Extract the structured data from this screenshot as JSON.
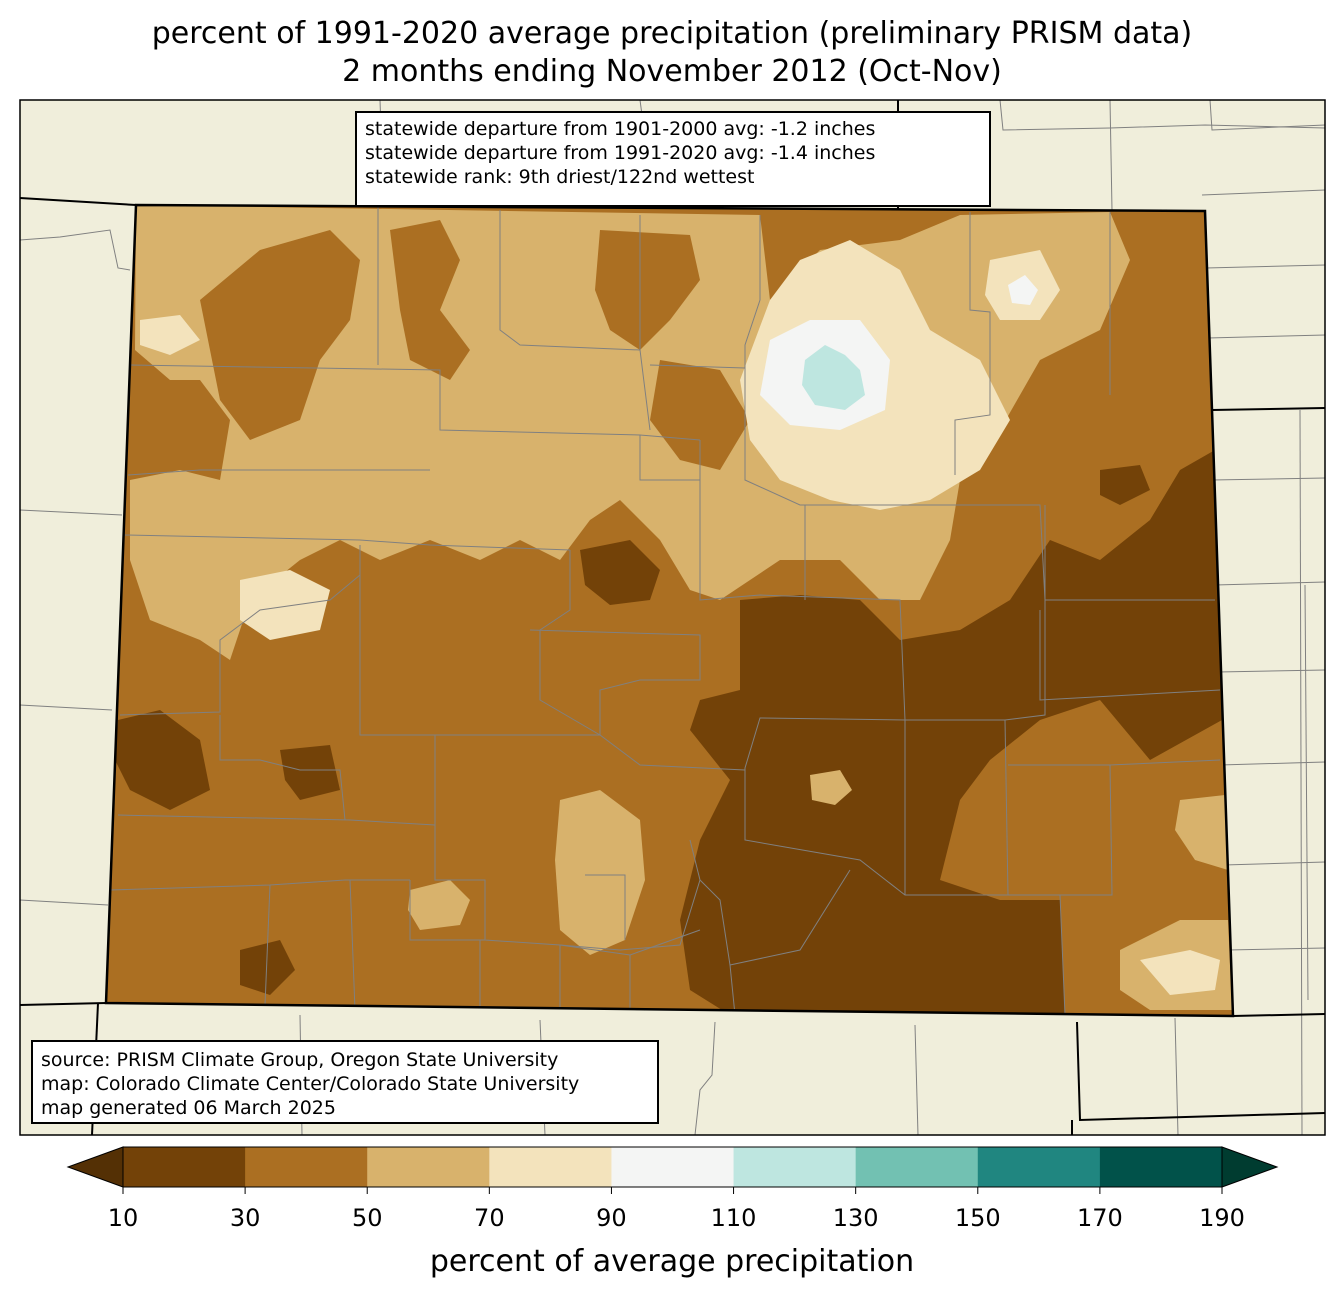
{
  "title": {
    "line1": "percent of 1991-2020 average precipitation (preliminary PRISM data)",
    "line2": "2 months ending November 2012 (Oct-Nov)"
  },
  "stats": {
    "line1": "statewide departure from 1901-2000 avg: -1.2 inches",
    "line2": "statewide departure from 1991-2020 avg: -1.4 inches",
    "line3": "statewide rank: 9th driest/122nd wettest"
  },
  "source": {
    "line1": "source: PRISM Climate Group, Oregon State University",
    "line2": "map: Colorado Climate Center/Colorado State University",
    "line3": "map generated 06 March 2025"
  },
  "colorbar": {
    "title": "percent of average precipitation",
    "ticks": [
      "10",
      "30",
      "50",
      "70",
      "90",
      "110",
      "130",
      "150",
      "170",
      "190"
    ],
    "bins": [
      {
        "range": "10-30",
        "color": "#734208"
      },
      {
        "range": "30-50",
        "color": "#ab6f22"
      },
      {
        "range": "50-70",
        "color": "#d8b26c"
      },
      {
        "range": "70-90",
        "color": "#f3e3bc"
      },
      {
        "range": "90-110",
        "color": "#f4f5f4"
      },
      {
        "range": "110-130",
        "color": "#bee6e0"
      },
      {
        "range": "130-150",
        "color": "#72c1b2"
      },
      {
        "range": "150-170",
        "color": "#208680"
      },
      {
        "range": "170-190",
        "color": "#01524a"
      }
    ],
    "under_color": "#543005",
    "over_color": "#003c30"
  },
  "colors": {
    "background_land": "#f0eedb",
    "county_lines": "#808080",
    "state_border": "#000000"
  }
}
